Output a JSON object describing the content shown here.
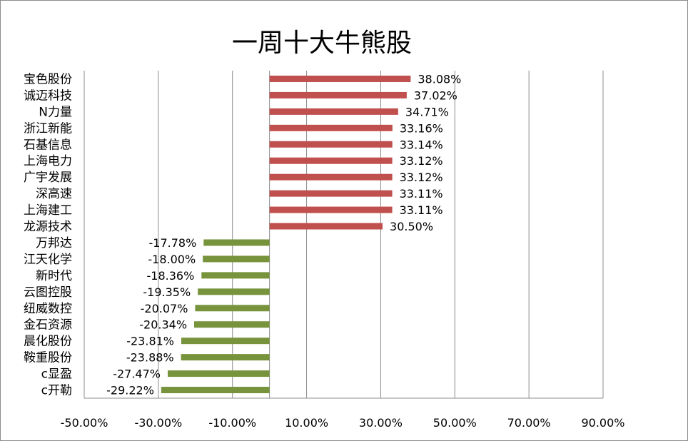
{
  "chart_data": {
    "type": "bar",
    "orientation": "horizontal",
    "title": "一周十大牛熊股",
    "xlabel": "",
    "ylabel": "",
    "categories": [
      "宝色股份",
      "诚迈科技",
      "N力量",
      "浙江新能",
      "石基信息",
      "上海电力",
      "广宇发展",
      "深高速",
      "上海建工",
      "龙源技术",
      "万邦达",
      "江天化学",
      "新时代",
      "云图控股",
      "纽威数控",
      "金石资源",
      "晨化股份",
      "鞍重股份",
      "c显盈",
      "c开勒"
    ],
    "values": [
      38.08,
      37.02,
      34.71,
      33.16,
      33.14,
      33.12,
      33.12,
      33.11,
      33.11,
      30.5,
      -17.78,
      -18.0,
      -18.36,
      -19.35,
      -20.07,
      -20.34,
      -23.81,
      -23.88,
      -27.47,
      -29.22
    ],
    "data_labels": [
      "38.08%",
      "37.02%",
      "34.71%",
      "33.16%",
      "33.14%",
      "33.12%",
      "33.12%",
      "33.11%",
      "33.11%",
      "30.50%",
      "-17.78%",
      "-18.00%",
      "-18.36%",
      "-19.35%",
      "-20.07%",
      "-20.34%",
      "-23.81%",
      "-23.88%",
      "-27.47%",
      "-29.22%"
    ],
    "xlim": [
      -50,
      90
    ],
    "x_ticks": [
      -50,
      -30,
      -10,
      10,
      30,
      50,
      70,
      90
    ],
    "x_tick_labels": [
      "-50.00%",
      "-30.00%",
      "-10.00%",
      "10.00%",
      "30.00%",
      "50.00%",
      "70.00%",
      "90.00%"
    ],
    "grid": true,
    "legend": "none",
    "colors": {
      "positive": "#c0504d",
      "negative": "#77933c",
      "grid": "#8c8c8c"
    }
  }
}
